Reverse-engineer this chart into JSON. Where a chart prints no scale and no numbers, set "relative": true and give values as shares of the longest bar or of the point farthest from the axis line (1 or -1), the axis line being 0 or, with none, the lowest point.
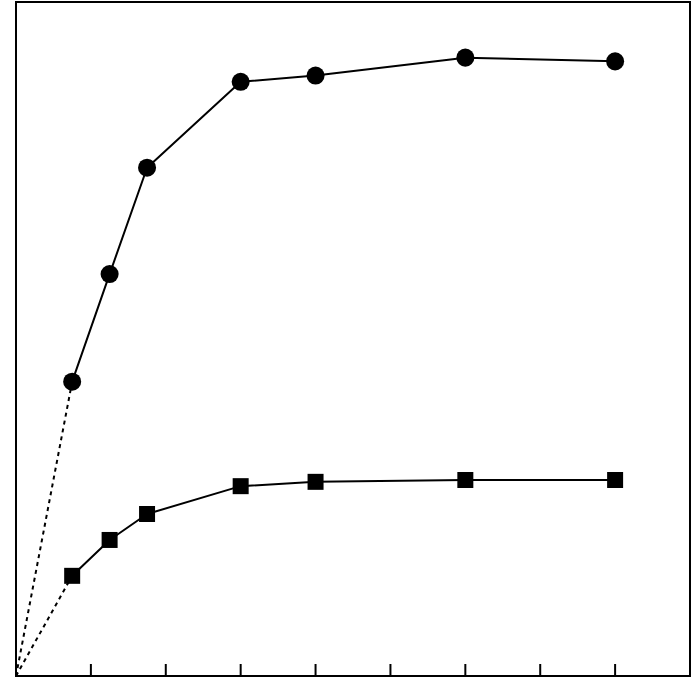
{
  "chart_data": {
    "type": "line",
    "relative": true,
    "categories": [
      null,
      null,
      null,
      null,
      null,
      null,
      null,
      null,
      null,
      null,
      null,
      null,
      null,
      null,
      null,
      null,
      null,
      null,
      null,
      null,
      null,
      null,
      null,
      null,
      null,
      null,
      null,
      null,
      null,
      null,
      null,
      null,
      null,
      null,
      null,
      null,
      null
    ],
    "series": [
      {
        "color": "#000000",
        "marker": "circle",
        "values": [
          null,
          null,
          null,
          0.476,
          null,
          0.65,
          null,
          0.822,
          null,
          null,
          null,
          null,
          0.961,
          null,
          null,
          null,
          0.971,
          null,
          null,
          null,
          null,
          null,
          null,
          null,
          1,
          null,
          null,
          null,
          null,
          null,
          null,
          null,
          0.994,
          null,
          null,
          null,
          null
        ]
      },
      {
        "color": "#000000",
        "marker": "square",
        "values": [
          null,
          null,
          null,
          0.162,
          null,
          0.22,
          null,
          0.262,
          null,
          null,
          null,
          null,
          0.307,
          null,
          null,
          null,
          0.314,
          null,
          null,
          null,
          null,
          null,
          null,
          null,
          0.317,
          null,
          null,
          null,
          null,
          null,
          null,
          null,
          0.317,
          null,
          null,
          null,
          null
        ]
      },
      {
        "color": "#000000",
        "marker": "none",
        "line_style": "dotted",
        "values": [
          0,
          null,
          null,
          0.476,
          null,
          null,
          null,
          null,
          null,
          null,
          null,
          null,
          null,
          null,
          null,
          null,
          null,
          null,
          null,
          null,
          null,
          null,
          null,
          null,
          null,
          null,
          null,
          null,
          null,
          null,
          null,
          null,
          null,
          null,
          null,
          null,
          null
        ]
      },
      {
        "color": "#000000",
        "marker": "none",
        "line_style": "dotted",
        "values": [
          0,
          null,
          null,
          0.162,
          null,
          null,
          null,
          null,
          null,
          null,
          null,
          null,
          null,
          null,
          null,
          null,
          null,
          null,
          null,
          null,
          null,
          null,
          null,
          null,
          null,
          null,
          null,
          null,
          null,
          null,
          null,
          null,
          null,
          null,
          null,
          null,
          null
        ]
      }
    ]
  }
}
